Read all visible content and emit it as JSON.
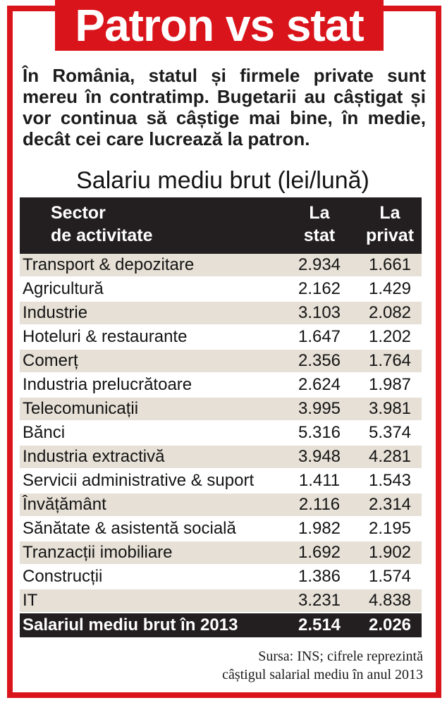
{
  "header": {
    "title": "Patron vs stat"
  },
  "intro": {
    "text": "În România, statul și firmele private sunt mereu în contratimp. Bugetarii au câștigat și vor continua să câștige mai bine, în medie, decât cei care lucrează la patron."
  },
  "table": {
    "caption": "Salariu mediu brut (lei/lună)",
    "headers": {
      "sector_line1": "Sector",
      "sector_line2": "de activitate",
      "stat_line1": "La",
      "stat_line2": "stat",
      "privat_line1": "La",
      "privat_line2": "privat"
    },
    "rows": [
      {
        "sector": "Transport & depozitare",
        "stat": "2.934",
        "privat": "1.661"
      },
      {
        "sector": "Agricultură",
        "stat": "2.162",
        "privat": "1.429"
      },
      {
        "sector": "Industrie",
        "stat": "3.103",
        "privat": "2.082"
      },
      {
        "sector": "Hoteluri & restaurante",
        "stat": "1.647",
        "privat": "1.202"
      },
      {
        "sector": "Comerț",
        "stat": "2.356",
        "privat": "1.764"
      },
      {
        "sector": "Industria prelucrătoare",
        "stat": "2.624",
        "privat": "1.987"
      },
      {
        "sector": "Telecomunicații",
        "stat": "3.995",
        "privat": "3.981"
      },
      {
        "sector": "Bănci",
        "stat": "5.316",
        "privat": "5.374"
      },
      {
        "sector": "Industria extractivă",
        "stat": "3.948",
        "privat": "4.281"
      },
      {
        "sector": "Servicii administrative & suport",
        "stat": "1.411",
        "privat": "1.543"
      },
      {
        "sector": "Învățământ",
        "stat": "2.116",
        "privat": "2.314"
      },
      {
        "sector": "Sănătate & asistentă socială",
        "stat": "1.982",
        "privat": "2.195"
      },
      {
        "sector": "Tranzacții imobiliare",
        "stat": "1.692",
        "privat": "1.902"
      },
      {
        "sector": "Construcții",
        "stat": "1.386",
        "privat": "1.574"
      },
      {
        "sector": "IT",
        "stat": "3.231",
        "privat": "4.838"
      }
    ],
    "total": {
      "sector": "Salariul mediu brut în 2013",
      "stat": "2.514",
      "privat": "2.026"
    }
  },
  "source": {
    "line1": "Sursa: INS; cifrele reprezintă",
    "line2": "câștigul salarial mediu în anul 2013"
  },
  "colors": {
    "accent_red": "#d9141b",
    "header_dark": "#231f20",
    "row_stripe": "#e6e0d6"
  }
}
